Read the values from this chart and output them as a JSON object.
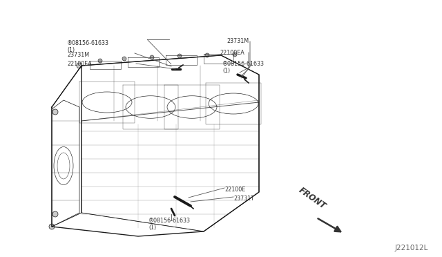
{
  "background_color": "#ffffff",
  "figure_width": 6.4,
  "figure_height": 3.72,
  "dpi": 100,
  "watermark_text": "J221012L",
  "watermark_fontsize": 7.5,
  "watermark_color": "#666666",
  "label_bolt_tl": "®08156-61633\n(1)",
  "label_part_tl1": "23731M",
  "label_part_tl2": "22100EA",
  "label_part_tr1": "23731M",
  "label_part_tr2": "22100EA",
  "label_bolt_tr": "®08156-61633\n(1)",
  "label_part_br1": "22100E",
  "label_part_br2": "23731T",
  "label_bolt_br": "®08156-61633\n(1)",
  "label_front": "FRONT",
  "line_color": "#555555",
  "engine_color": "#222222",
  "text_color": "#333333",
  "font_size": 5.8
}
